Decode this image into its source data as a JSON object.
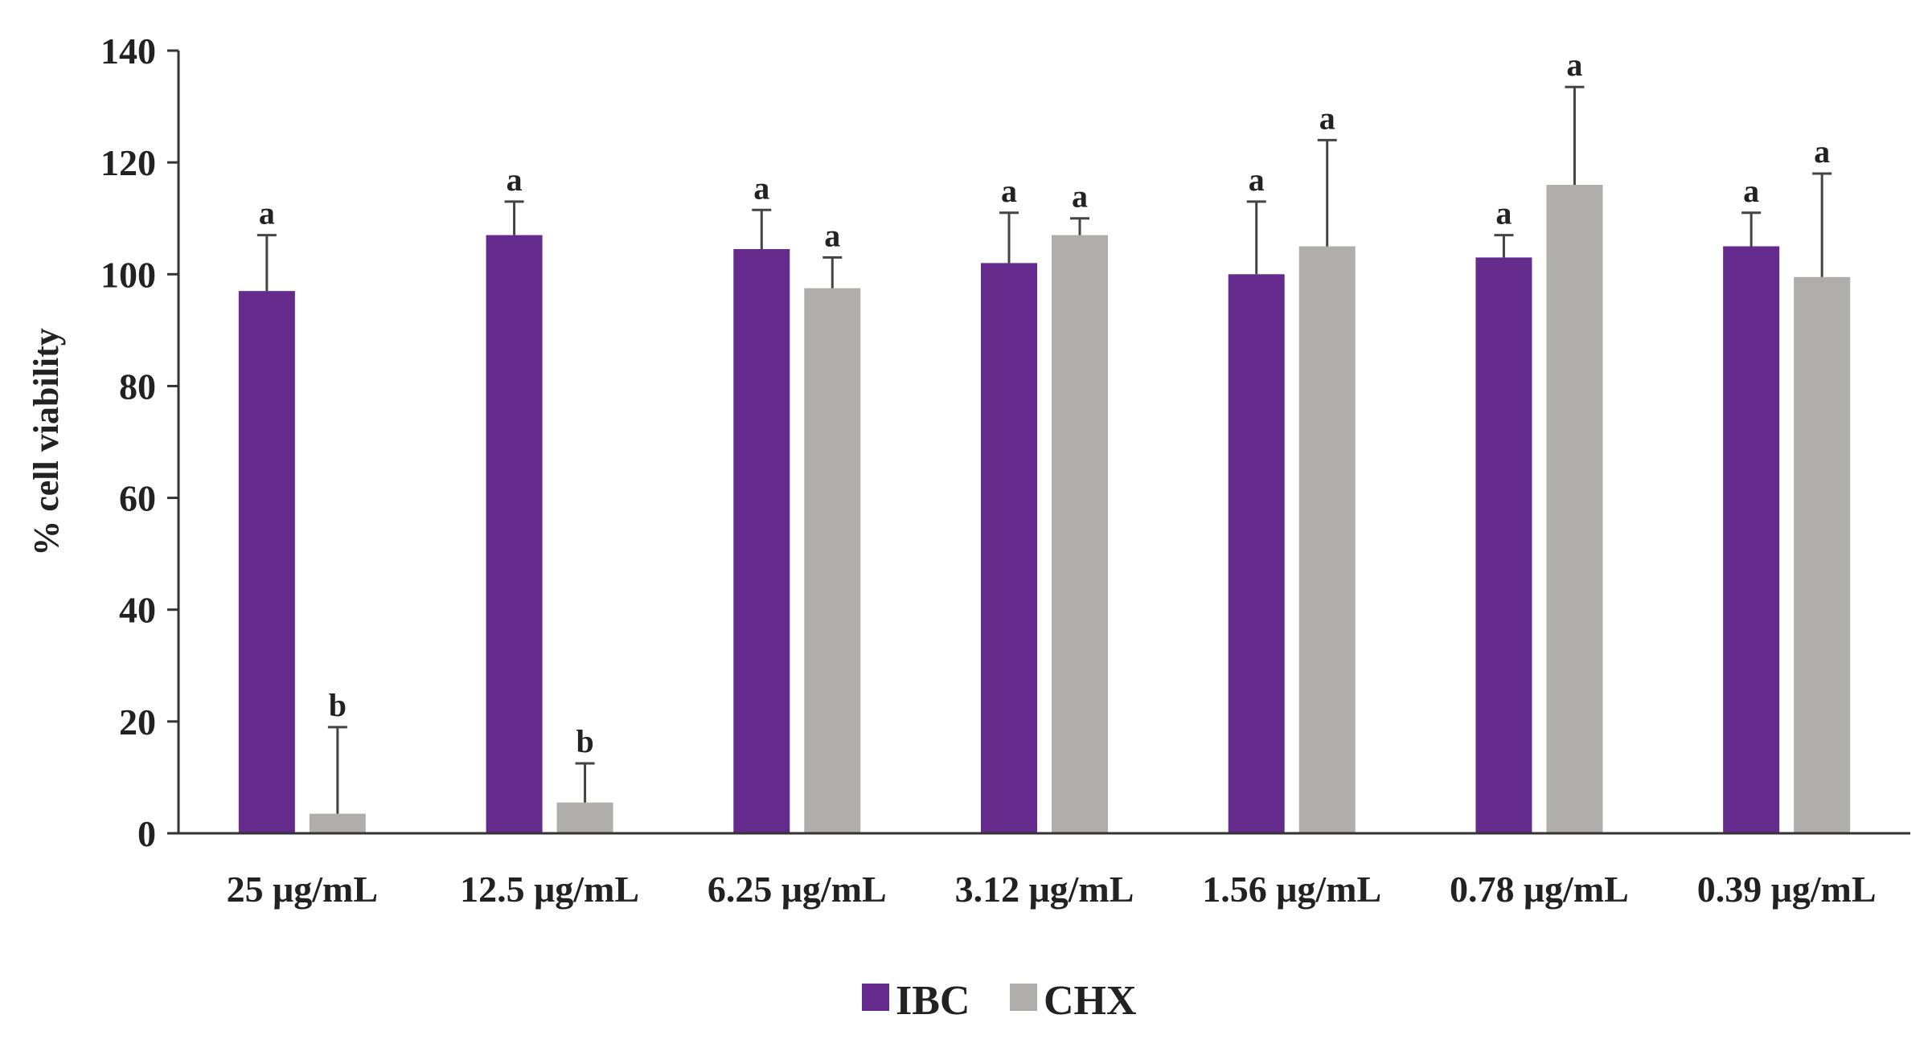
{
  "chart_data": {
    "type": "bar",
    "title": "",
    "xlabel": "",
    "ylabel": "% cell viability",
    "ylim": [
      0,
      140
    ],
    "yticks": [
      0,
      20,
      40,
      60,
      80,
      100,
      120,
      140
    ],
    "grid": false,
    "legend_position": "bottom-center",
    "categories": [
      "25 μg/mL",
      "12.5 μg/mL",
      "6.25 μg/mL",
      "3.12 μg/mL",
      "1.56 μg/mL",
      "0.78 μg/mL",
      "0.39 μg/mL"
    ],
    "series": [
      {
        "name": "IBC",
        "color": "#642b8c",
        "values": [
          97,
          107,
          104.5,
          102,
          100,
          103,
          105
        ],
        "errors": [
          10,
          6,
          7,
          9,
          13,
          4,
          6
        ],
        "significance": [
          "a",
          "a",
          "a",
          "a",
          "a",
          "a",
          "a"
        ]
      },
      {
        "name": "CHX",
        "color": "#b0adad",
        "values": [
          3.5,
          5.5,
          97.5,
          107,
          105,
          116,
          99.5
        ],
        "errors": [
          15.5,
          7,
          5.5,
          3,
          19,
          17.5,
          18.5
        ],
        "significance": [
          "b",
          "b",
          "a",
          "a",
          "a",
          "a",
          "a"
        ]
      }
    ]
  }
}
